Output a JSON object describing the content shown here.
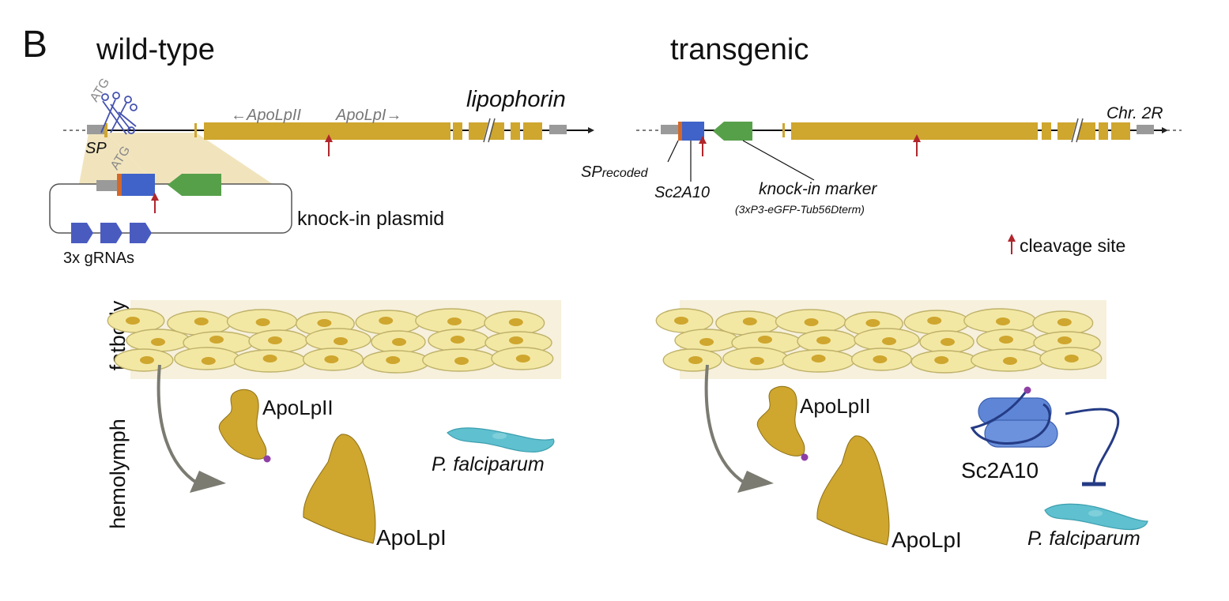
{
  "panel_letter": "B",
  "wildtype": {
    "title": "wild-type",
    "gene_name": "lipophorin",
    "apolpii_arrow": "←ApoLpII",
    "apolpi_arrow": "ApoLpI→",
    "atg_label": "ATG",
    "sp_label": "SP",
    "plasmid_atg_label": "ATG",
    "plasmid_label": "knock-in plasmid",
    "grnas_label": "3x gRNAs",
    "tissue_fatbody": "fatbody",
    "tissue_hemolymph": "hemolymph",
    "protein_apolpii": "ApoLpII",
    "protein_apolpi": "ApoLpI",
    "parasite": "P. falciparum"
  },
  "transgenic": {
    "title": "transgenic",
    "chromosome": "Chr. 2R",
    "sp_prefix": "SP",
    "sp_suffix": "recoded",
    "sc2a10_gene": "Sc2A10",
    "marker_label": "knock-in marker",
    "marker_detail": "(3xP3-eGFP-Tub56Dterm)",
    "cleavage_legend": "cleavage site",
    "protein_apolpii": "ApoLpII",
    "protein_apolpi": "ApoLpI",
    "transporter": "Sc2A10",
    "parasite": "P. falciparum"
  },
  "colors": {
    "gold_exon": "#CFA62E",
    "grey_utr": "#9A9A9A",
    "blue_sc2a10": "#3F63C9",
    "green_marker": "#57A04A",
    "orange_sp": "#D2692A",
    "cleavage_red": "#B0262B",
    "fat_cell": "#F3E8A3",
    "parasite_cyan": "#5FC0D0",
    "purple_dot": "#8E3FA6",
    "arrow_grey": "#7B7B72"
  }
}
